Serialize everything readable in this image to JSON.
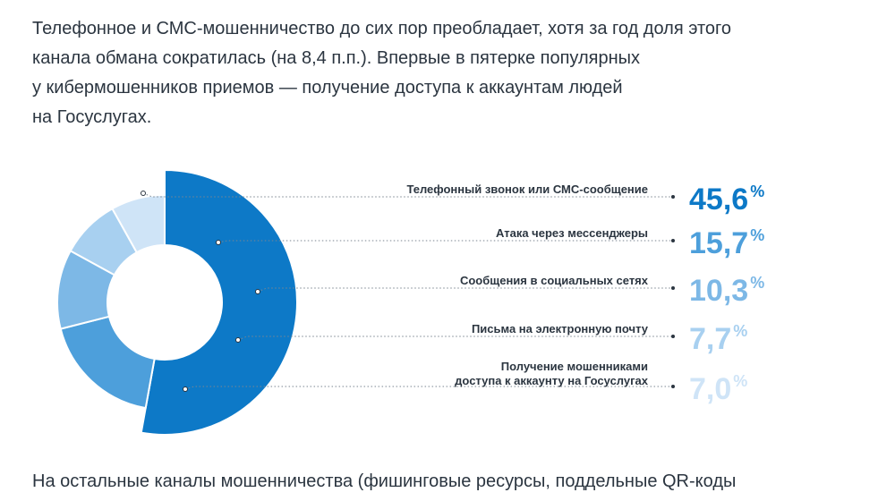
{
  "intro_lines": [
    "Телефонное и СМС-мошенничество до сих пор преобладает, хотя за год доля этого",
    "канала обмана сократилась (на 8,4 п.п.). Впервые в пятерке популярных",
    "у кибермошенников приемов — получение доступа к аккаунтам людей",
    "на Госуслугах."
  ],
  "outro_line": "На остальные каналы мошенничества (фишинговые ресурсы, поддельные QR-коды",
  "chart_data": {
    "type": "pie",
    "variant": "donut",
    "unit": "%",
    "categories": [
      [
        "Телефонный звонок или СМС-сообщение"
      ],
      [
        "Атака через мессенджеры"
      ],
      [
        "Сообщения в социальных сетях"
      ],
      [
        "Письма на электронную почту"
      ],
      [
        "Получение мошенниками",
        "доступа к аккаунту на Госуслугах"
      ]
    ],
    "values": [
      45.6,
      15.7,
      10.3,
      7.7,
      7.0
    ],
    "value_labels": [
      "45,6",
      "15,7",
      "10,3",
      "7,7",
      "7,0"
    ],
    "colors": [
      "#0d79c7",
      "#4d9fdb",
      "#7db8e6",
      "#a8d0f0",
      "#cfe4f7"
    ]
  }
}
